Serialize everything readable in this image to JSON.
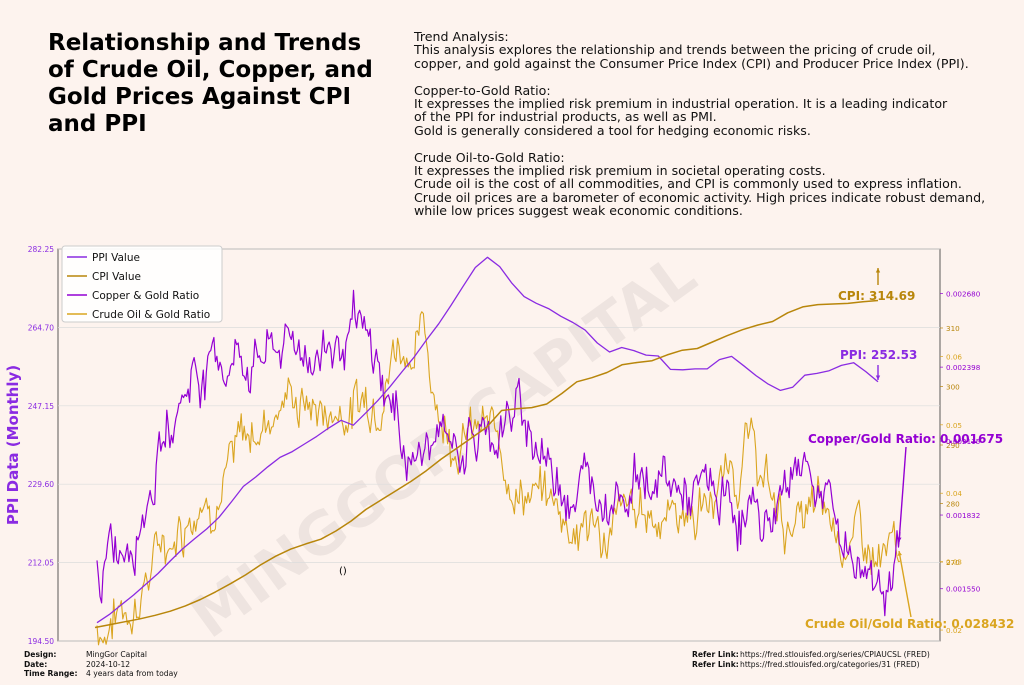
{
  "title": "Relationship and Trends of Crude Oil, Copper, and Gold Prices Against CPI and PPI",
  "notes": {
    "trend_heading": "Trend Analysis:",
    "trend_lines": [
      "This analysis explores the relationship and trends between the pricing of crude oil,",
      "copper, and gold against the Consumer Price Index (CPI) and Producer Price Index (PPI)."
    ],
    "copper_heading": "Copper-to-Gold Ratio:",
    "copper_lines": [
      "It expresses the implied risk premium in industrial operation. It is a leading indicator",
      "of the PPI for industrial products, as well as PMI.",
      "Gold is generally considered a tool for hedging economic risks."
    ],
    "oil_heading": "Crude Oil-to-Gold Ratio:",
    "oil_lines": [
      "It expresses the implied risk premium in societal operating costs.",
      "Crude oil is the cost of all commodities, and CPI is commonly used to express inflation.",
      "Crude oil prices are a barometer of economic activity. High prices indicate robust demand,",
      "while low prices suggest weak economic conditions."
    ]
  },
  "footer": {
    "design_label": "Design:",
    "design_value": "MingGor Capital",
    "date_label": "Date:",
    "date_value": "2024-10-12",
    "range_label": "Time Range:",
    "range_value": "4 years data from today",
    "ref1_label": "Refer Link:",
    "ref1_value": "https://fred.stlouisfed.org/series/CPIAUCSL (FRED)",
    "ref2_label": "Refer Link:",
    "ref2_value": "https://fred.stlouisfed.org/categories/31 (FRED)"
  },
  "watermark": "MINGGOR CAPITAL",
  "colors": {
    "ppi": "#8a2be2",
    "cpi": "#b8860b",
    "copper": "#9400d3",
    "oil": "#daa520",
    "grid": "#dcdcdc"
  },
  "chart_data": {
    "type": "line",
    "ylabel": "PPI Data (Monthly)",
    "stray_label": "()",
    "legend": [
      "PPI Value",
      "CPI Value",
      "Copper & Gold Ratio",
      "Crude Oil & Gold Ratio"
    ],
    "legend_position": "top-left",
    "grid": true,
    "left_axis": {
      "min": 194.5,
      "max": 282.25,
      "ticks": [
        "194.50",
        "212.05",
        "229.60",
        "247.15",
        "264.70",
        "282.25"
      ]
    },
    "cpi_axis": {
      "min": 256.5,
      "max": 323.5,
      "ticks": [
        "270",
        "280",
        "290",
        "300",
        "310"
      ]
    },
    "copper_axis": {
      "min": 0.00135,
      "max": 0.00285,
      "ticks": [
        "0.001550",
        "0.001832",
        "0.002115",
        "0.002398",
        "0.002680"
      ]
    },
    "oil_axis": {
      "min": 0.0184,
      "max": 0.0757,
      "ticks": [
        "0.02",
        "0.03",
        "0.04",
        "0.05",
        "0.06"
      ]
    },
    "annotations": {
      "cpi": "CPI: 314.69",
      "ppi": "PPI: 252.53",
      "copper": "Copper/Gold Ratio: 0.001675",
      "oil": "Crude Oil/Gold Ratio: 0.028432"
    },
    "ppi_series": [
      198.6,
      200.4,
      202.6,
      204.8,
      207.2,
      209.6,
      212.4,
      215.1,
      217.4,
      219.6,
      222.2,
      225.6,
      229.1,
      231.2,
      233.5,
      235.6,
      236.9,
      238.6,
      240.3,
      242.2,
      243.9,
      242.8,
      245.5,
      248.3,
      251.4,
      254.8,
      258.1,
      261.9,
      265.5,
      269.6,
      273.9,
      278.1,
      280.4,
      278.3,
      274.6,
      271.6,
      270.1,
      268.9,
      267.2,
      265.8,
      264.1,
      261.2,
      259.2,
      260.2,
      259.5,
      258.5,
      258.3,
      255.3,
      255.2,
      255.4,
      255.4,
      257.5,
      258.2,
      256.1,
      253.9,
      252.0,
      250.6,
      251.3,
      254.0,
      254.4,
      255.0,
      256.2,
      256.8,
      254.8,
      252.53
    ],
    "cpi_series": [
      258.8,
      259.3,
      259.8,
      260.3,
      260.9,
      261.6,
      262.5,
      263.6,
      264.9,
      266.3,
      267.8,
      269.5,
      271.0,
      272.2,
      273.1,
      273.9,
      275.3,
      277.0,
      279.0,
      280.6,
      282.2,
      283.8,
      285.6,
      287.6,
      289.4,
      291.2,
      293.0,
      295.9,
      296.2,
      296.4,
      297.0,
      298.8,
      300.8,
      301.5,
      302.4,
      303.7,
      304.1,
      304.4,
      305.4,
      306.2,
      306.5,
      307.6,
      308.7,
      309.7,
      310.5,
      311.1,
      312.6,
      313.6,
      314.0,
      314.1,
      314.2,
      314.5,
      314.69
    ],
    "copper_series_points": 530,
    "oil_series_points": 530
  }
}
